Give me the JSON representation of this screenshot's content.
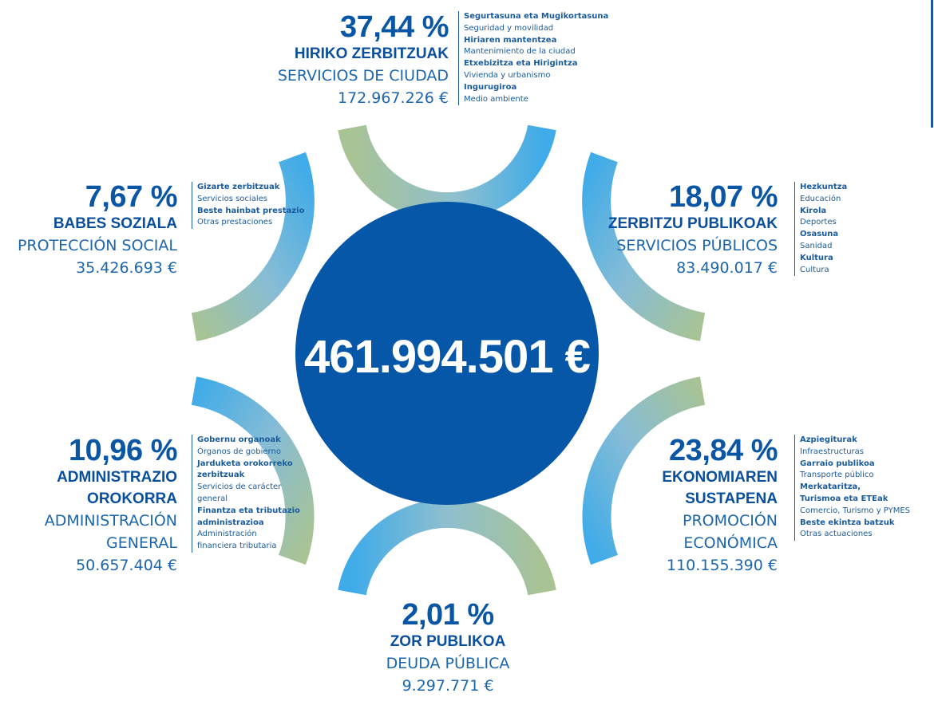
{
  "total": "461.994.501 €",
  "segments": [
    {
      "id": "hiriko",
      "percent": "37,44 %",
      "name_eu": [
        "HIRIKO ZERBITZUAK"
      ],
      "name_es": [
        "SERVICIOS DE CIUDAD"
      ],
      "amount": "172.967.226 €",
      "details": [
        {
          "eu": [
            "Segurtasuna eta Mugikortasuna"
          ],
          "es": [
            "Seguridad y movilidad"
          ]
        },
        {
          "eu": [
            "Hiriaren mantentzea"
          ],
          "es": [
            "Mantenimiento de la ciudad"
          ]
        },
        {
          "eu": [
            "Etxebizitza eta Hirigintza"
          ],
          "es": [
            "Vivienda y urbanismo"
          ]
        },
        {
          "eu": [
            "Ingurugiroa"
          ],
          "es": [
            "Medio ambiente"
          ]
        }
      ]
    },
    {
      "id": "zerbitzu",
      "percent": "18,07 %",
      "name_eu": [
        "ZERBITZU PUBLIKOAK"
      ],
      "name_es": [
        "SERVICIOS PÚBLICOS"
      ],
      "amount": "83.490.017 €",
      "details": [
        {
          "eu": [
            "Hezkuntza"
          ],
          "es": [
            "Educación"
          ]
        },
        {
          "eu": [
            "Kirola"
          ],
          "es": [
            "Deportes"
          ]
        },
        {
          "eu": [
            "Osasuna"
          ],
          "es": [
            "Sanidad"
          ]
        },
        {
          "eu": [
            "Kultura"
          ],
          "es": [
            "Cultura"
          ]
        }
      ]
    },
    {
      "id": "ekonomia",
      "percent": "23,84 %",
      "name_eu": [
        "EKONOMIAREN",
        "SUSTAPENA"
      ],
      "name_es": [
        "PROMOCIÓN",
        "ECONÓMICA"
      ],
      "amount": "110.155.390 €",
      "details": [
        {
          "eu": [
            "Azpiegiturak"
          ],
          "es": [
            "Infraestructuras"
          ]
        },
        {
          "eu": [
            "Garraio publikoa"
          ],
          "es": [
            "Transporte público"
          ]
        },
        {
          "eu": [
            "Merkataritza,",
            "Turismoa eta ETEak"
          ],
          "es": [
            "Comercio, Turismo y PYMES"
          ]
        },
        {
          "eu": [
            "Beste ekintza batzuk"
          ],
          "es": [
            "Otras actuaciones"
          ]
        }
      ]
    },
    {
      "id": "zor",
      "percent": "2,01 %",
      "name_eu": [
        "ZOR PUBLIKOA"
      ],
      "name_es": [
        "DEUDA PÚBLICA"
      ],
      "amount": "9.297.771 €",
      "details": []
    },
    {
      "id": "administrazio",
      "percent": "10,96 %",
      "name_eu": [
        "ADMINISTRAZIO",
        "OROKORRA"
      ],
      "name_es": [
        "ADMINISTRACIÓN",
        "GENERAL"
      ],
      "amount": "50.657.404 €",
      "details": [
        {
          "eu": [
            "Gobernu organoak"
          ],
          "es": [
            "Órganos de gobierno"
          ]
        },
        {
          "eu": [
            "Jarduketa orokorreko",
            "zerbitzuak"
          ],
          "es": [
            "Servicios de carácter",
            "general"
          ]
        },
        {
          "eu": [
            "Finantza eta tributazio",
            "administrazioa"
          ],
          "es": [
            "Administración",
            "financiera tributaria"
          ]
        }
      ]
    },
    {
      "id": "babes",
      "percent": "7,67 %",
      "name_eu": [
        "BABES SOZIALA"
      ],
      "name_es": [
        "PROTECCIÓN SOCIAL"
      ],
      "amount": "35.426.693 €",
      "details": [
        {
          "eu": [
            "Gizarte zerbitzuak"
          ],
          "es": [
            "Servicios sociales"
          ]
        },
        {
          "eu": [
            "Beste hainbat prestazio"
          ],
          "es": [
            "Otras prestaciones"
          ]
        }
      ]
    }
  ],
  "colors": {
    "circle": "#0757a8",
    "text": "#0a56a5",
    "arc_blue": "#45ade6",
    "arc_green": "#a8c394"
  }
}
